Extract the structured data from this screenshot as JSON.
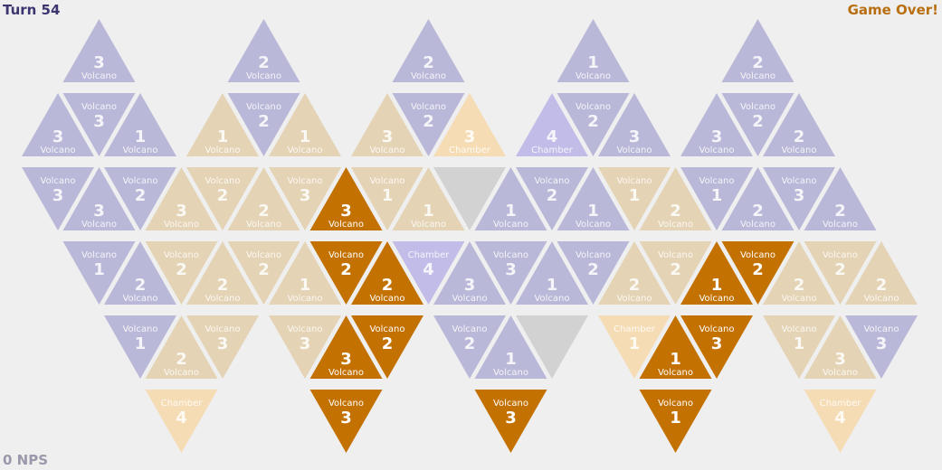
{
  "header": {
    "turn": "Turn 54",
    "status": "Game Over!"
  },
  "footer": {
    "nps": "0 NPS"
  },
  "colors": {
    "purple": "#b9b8d8",
    "tan": "#e4d3b4",
    "peach": "#f5dcb5",
    "lavender": "#c2bce8",
    "orange": "#c37100",
    "empty": "#d2d2d2",
    "text_light": "#ffffff"
  },
  "board": {
    "rows": [
      [
        {
          "col": 2,
          "type": "Volcano",
          "value": "3",
          "style": "purple"
        },
        {
          "col": 6,
          "type": "Volcano",
          "value": "2",
          "style": "purple"
        },
        {
          "col": 10,
          "type": "Volcano",
          "value": "2",
          "style": "purple"
        },
        {
          "col": 14,
          "type": "Volcano",
          "value": "1",
          "style": "purple"
        },
        {
          "col": 18,
          "type": "Volcano",
          "value": "2",
          "style": "purple"
        }
      ],
      [
        {
          "col": 1,
          "type": "Volcano",
          "value": "3",
          "style": "purple"
        },
        {
          "col": 2,
          "type": "Volcano",
          "value": "3",
          "style": "purple"
        },
        {
          "col": 3,
          "type": "Volcano",
          "value": "1",
          "style": "purple"
        },
        {
          "col": 5,
          "type": "Volcano",
          "value": "1",
          "style": "tan"
        },
        {
          "col": 6,
          "type": "Volcano",
          "value": "2",
          "style": "purple"
        },
        {
          "col": 7,
          "type": "Volcano",
          "value": "1",
          "style": "tan"
        },
        {
          "col": 9,
          "type": "Volcano",
          "value": "3",
          "style": "tan"
        },
        {
          "col": 10,
          "type": "Volcano",
          "value": "2",
          "style": "purple"
        },
        {
          "col": 11,
          "type": "Chamber",
          "value": "3",
          "style": "peach"
        },
        {
          "col": 13,
          "type": "Chamber",
          "value": "4",
          "style": "lavender"
        },
        {
          "col": 14,
          "type": "Volcano",
          "value": "2",
          "style": "purple"
        },
        {
          "col": 15,
          "type": "Volcano",
          "value": "3",
          "style": "purple"
        },
        {
          "col": 17,
          "type": "Volcano",
          "value": "3",
          "style": "purple"
        },
        {
          "col": 18,
          "type": "Volcano",
          "value": "2",
          "style": "purple"
        },
        {
          "col": 19,
          "type": "Volcano",
          "value": "2",
          "style": "purple"
        }
      ],
      [
        {
          "col": 1,
          "type": "Volcano",
          "value": "3",
          "style": "purple"
        },
        {
          "col": 2,
          "type": "Volcano",
          "value": "3",
          "style": "purple"
        },
        {
          "col": 3,
          "type": "Volcano",
          "value": "2",
          "style": "purple"
        },
        {
          "col": 4,
          "type": "Volcano",
          "value": "3",
          "style": "tan"
        },
        {
          "col": 5,
          "type": "Volcano",
          "value": "2",
          "style": "tan"
        },
        {
          "col": 6,
          "type": "Volcano",
          "value": "2",
          "style": "tan"
        },
        {
          "col": 7,
          "type": "Volcano",
          "value": "3",
          "style": "tan"
        },
        {
          "col": 8,
          "type": "Volcano",
          "value": "3",
          "style": "orange"
        },
        {
          "col": 9,
          "type": "Volcano",
          "value": "1",
          "style": "tan"
        },
        {
          "col": 10,
          "type": "Volcano",
          "value": "1",
          "style": "tan"
        },
        {
          "col": 11,
          "type": "",
          "value": "",
          "style": "empty"
        },
        {
          "col": 12,
          "type": "Volcano",
          "value": "1",
          "style": "purple"
        },
        {
          "col": 13,
          "type": "Volcano",
          "value": "2",
          "style": "purple"
        },
        {
          "col": 14,
          "type": "Volcano",
          "value": "1",
          "style": "purple"
        },
        {
          "col": 15,
          "type": "Volcano",
          "value": "1",
          "style": "tan"
        },
        {
          "col": 16,
          "type": "Volcano",
          "value": "2",
          "style": "tan"
        },
        {
          "col": 17,
          "type": "Volcano",
          "value": "1",
          "style": "purple"
        },
        {
          "col": 18,
          "type": "Volcano",
          "value": "2",
          "style": "purple"
        },
        {
          "col": 19,
          "type": "Volcano",
          "value": "3",
          "style": "purple"
        },
        {
          "col": 20,
          "type": "Volcano",
          "value": "2",
          "style": "purple"
        }
      ],
      [
        {
          "col": 2,
          "type": "Volcano",
          "value": "1",
          "style": "purple"
        },
        {
          "col": 3,
          "type": "Volcano",
          "value": "2",
          "style": "purple"
        },
        {
          "col": 4,
          "type": "Volcano",
          "value": "2",
          "style": "tan"
        },
        {
          "col": 5,
          "type": "Volcano",
          "value": "2",
          "style": "tan"
        },
        {
          "col": 6,
          "type": "Volcano",
          "value": "2",
          "style": "tan"
        },
        {
          "col": 7,
          "type": "Volcano",
          "value": "1",
          "style": "tan"
        },
        {
          "col": 8,
          "type": "Volcano",
          "value": "2",
          "style": "orange"
        },
        {
          "col": 9,
          "type": "Volcano",
          "value": "2",
          "style": "orange"
        },
        {
          "col": 10,
          "type": "Chamber",
          "value": "4",
          "style": "lavender"
        },
        {
          "col": 11,
          "type": "Volcano",
          "value": "3",
          "style": "purple"
        },
        {
          "col": 12,
          "type": "Volcano",
          "value": "3",
          "style": "purple"
        },
        {
          "col": 13,
          "type": "Volcano",
          "value": "1",
          "style": "purple"
        },
        {
          "col": 14,
          "type": "Volcano",
          "value": "2",
          "style": "purple"
        },
        {
          "col": 15,
          "type": "Volcano",
          "value": "2",
          "style": "tan"
        },
        {
          "col": 16,
          "type": "Volcano",
          "value": "2",
          "style": "tan"
        },
        {
          "col": 17,
          "type": "Volcano",
          "value": "1",
          "style": "orange"
        },
        {
          "col": 18,
          "type": "Volcano",
          "value": "2",
          "style": "orange"
        },
        {
          "col": 19,
          "type": "Volcano",
          "value": "2",
          "style": "tan"
        },
        {
          "col": 20,
          "type": "Volcano",
          "value": "2",
          "style": "tan"
        },
        {
          "col": 21,
          "type": "Volcano",
          "value": "2",
          "style": "tan"
        }
      ],
      [
        {
          "col": 3,
          "type": "Volcano",
          "value": "1",
          "style": "purple"
        },
        {
          "col": 4,
          "type": "Volcano",
          "value": "2",
          "style": "tan"
        },
        {
          "col": 5,
          "type": "Volcano",
          "value": "3",
          "style": "tan"
        },
        {
          "col": 7,
          "type": "Volcano",
          "value": "3",
          "style": "tan"
        },
        {
          "col": 8,
          "type": "Volcano",
          "value": "3",
          "style": "orange"
        },
        {
          "col": 9,
          "type": "Volcano",
          "value": "2",
          "style": "orange"
        },
        {
          "col": 11,
          "type": "Volcano",
          "value": "2",
          "style": "purple"
        },
        {
          "col": 12,
          "type": "Volcano",
          "value": "1",
          "style": "purple"
        },
        {
          "col": 13,
          "type": "",
          "value": "",
          "style": "empty"
        },
        {
          "col": 15,
          "type": "Chamber",
          "value": "1",
          "style": "peach"
        },
        {
          "col": 16,
          "type": "Volcano",
          "value": "1",
          "style": "orange"
        },
        {
          "col": 17,
          "type": "Volcano",
          "value": "3",
          "style": "orange"
        },
        {
          "col": 19,
          "type": "Volcano",
          "value": "1",
          "style": "tan"
        },
        {
          "col": 20,
          "type": "Volcano",
          "value": "3",
          "style": "tan"
        },
        {
          "col": 21,
          "type": "Volcano",
          "value": "3",
          "style": "purple"
        }
      ],
      [
        {
          "col": 4,
          "type": "Chamber",
          "value": "4",
          "style": "peach"
        },
        {
          "col": 8,
          "type": "Volcano",
          "value": "3",
          "style": "orange"
        },
        {
          "col": 12,
          "type": "Volcano",
          "value": "3",
          "style": "orange"
        },
        {
          "col": 16,
          "type": "Volcano",
          "value": "1",
          "style": "orange"
        },
        {
          "col": 20,
          "type": "Chamber",
          "value": "4",
          "style": "peach"
        }
      ]
    ]
  }
}
